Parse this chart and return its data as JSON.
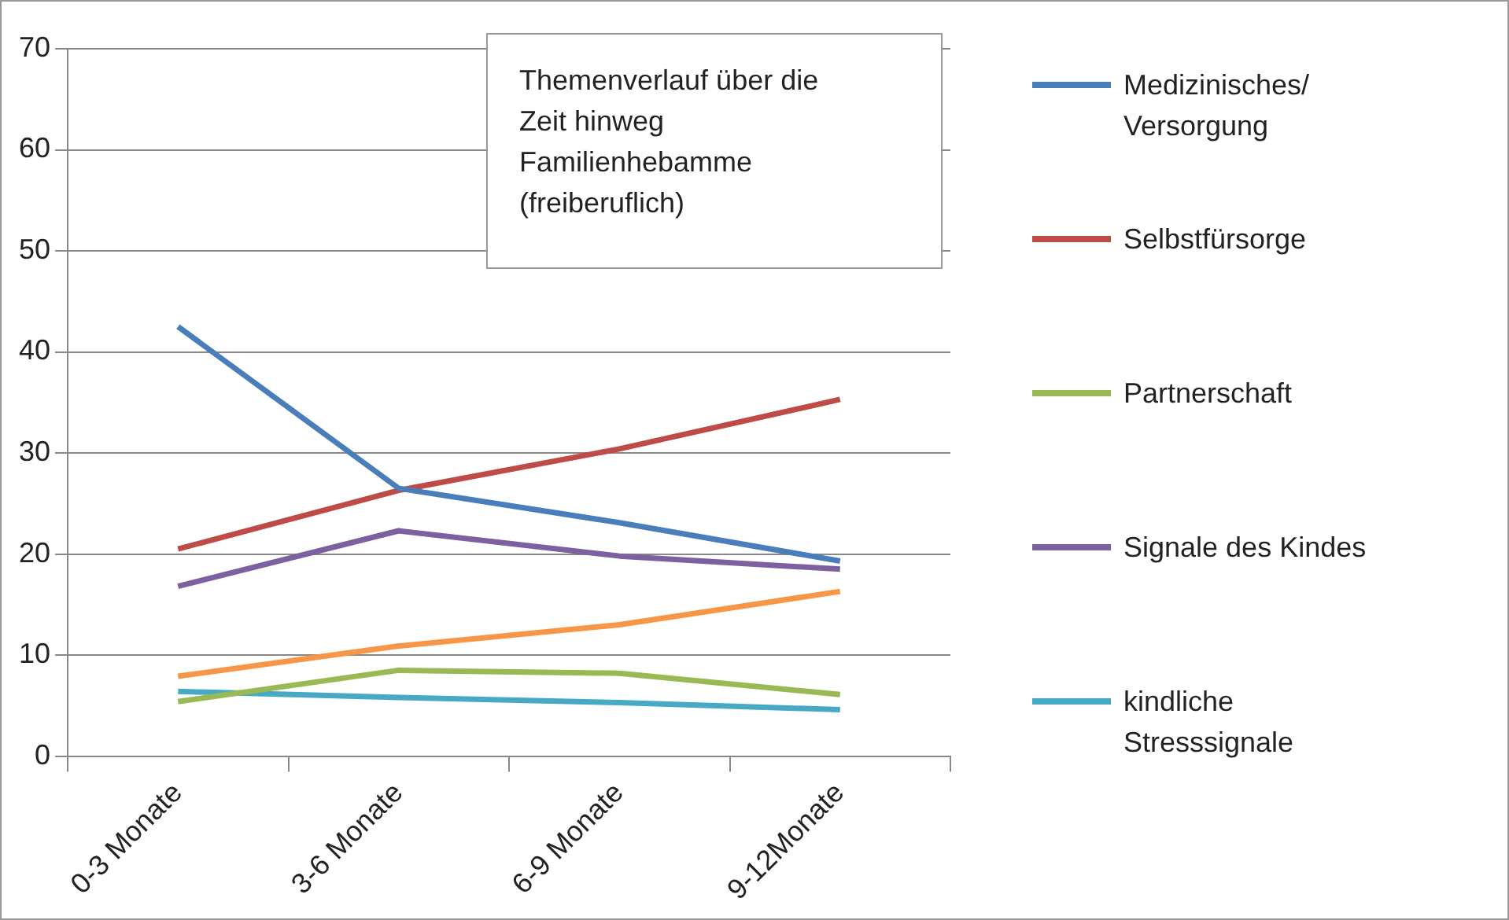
{
  "chart_data": {
    "type": "line",
    "title": "Themenverlauf über die Zeit hinweg Familienhebamme (freiberuflich)",
    "categories": [
      "0-3 Monate",
      "3-6 Monate",
      "6-9 Monate",
      "9-12Monate"
    ],
    "series": [
      {
        "name": "Medizinisches/ Versorgung",
        "color": "#4a7ebb",
        "values": [
          42.5,
          26.5,
          23.1,
          19.3
        ]
      },
      {
        "name": "Selbstfürsorge",
        "color": "#be4b48",
        "values": [
          20.5,
          26.3,
          30.4,
          35.3
        ]
      },
      {
        "name": "Partnerschaft",
        "color": "#98b954",
        "values": [
          5.4,
          8.5,
          8.2,
          6.1
        ]
      },
      {
        "name": "Signale des Kindes",
        "color": "#7d60a0",
        "values": [
          16.8,
          22.3,
          19.8,
          18.5
        ]
      },
      {
        "name": "kindliche Stresssignale",
        "color": "#46aac5",
        "values": [
          6.4,
          5.8,
          5.3,
          4.6
        ]
      },
      {
        "color": "#f79646",
        "values": [
          7.9,
          10.9,
          13,
          16.3
        ]
      }
    ],
    "ylim": [
      0,
      70
    ],
    "yticks": [
      0,
      10,
      20,
      30,
      40,
      50,
      60,
      70
    ],
    "grid": "y",
    "legend": "right",
    "marker": "none",
    "line_style": "solid"
  }
}
